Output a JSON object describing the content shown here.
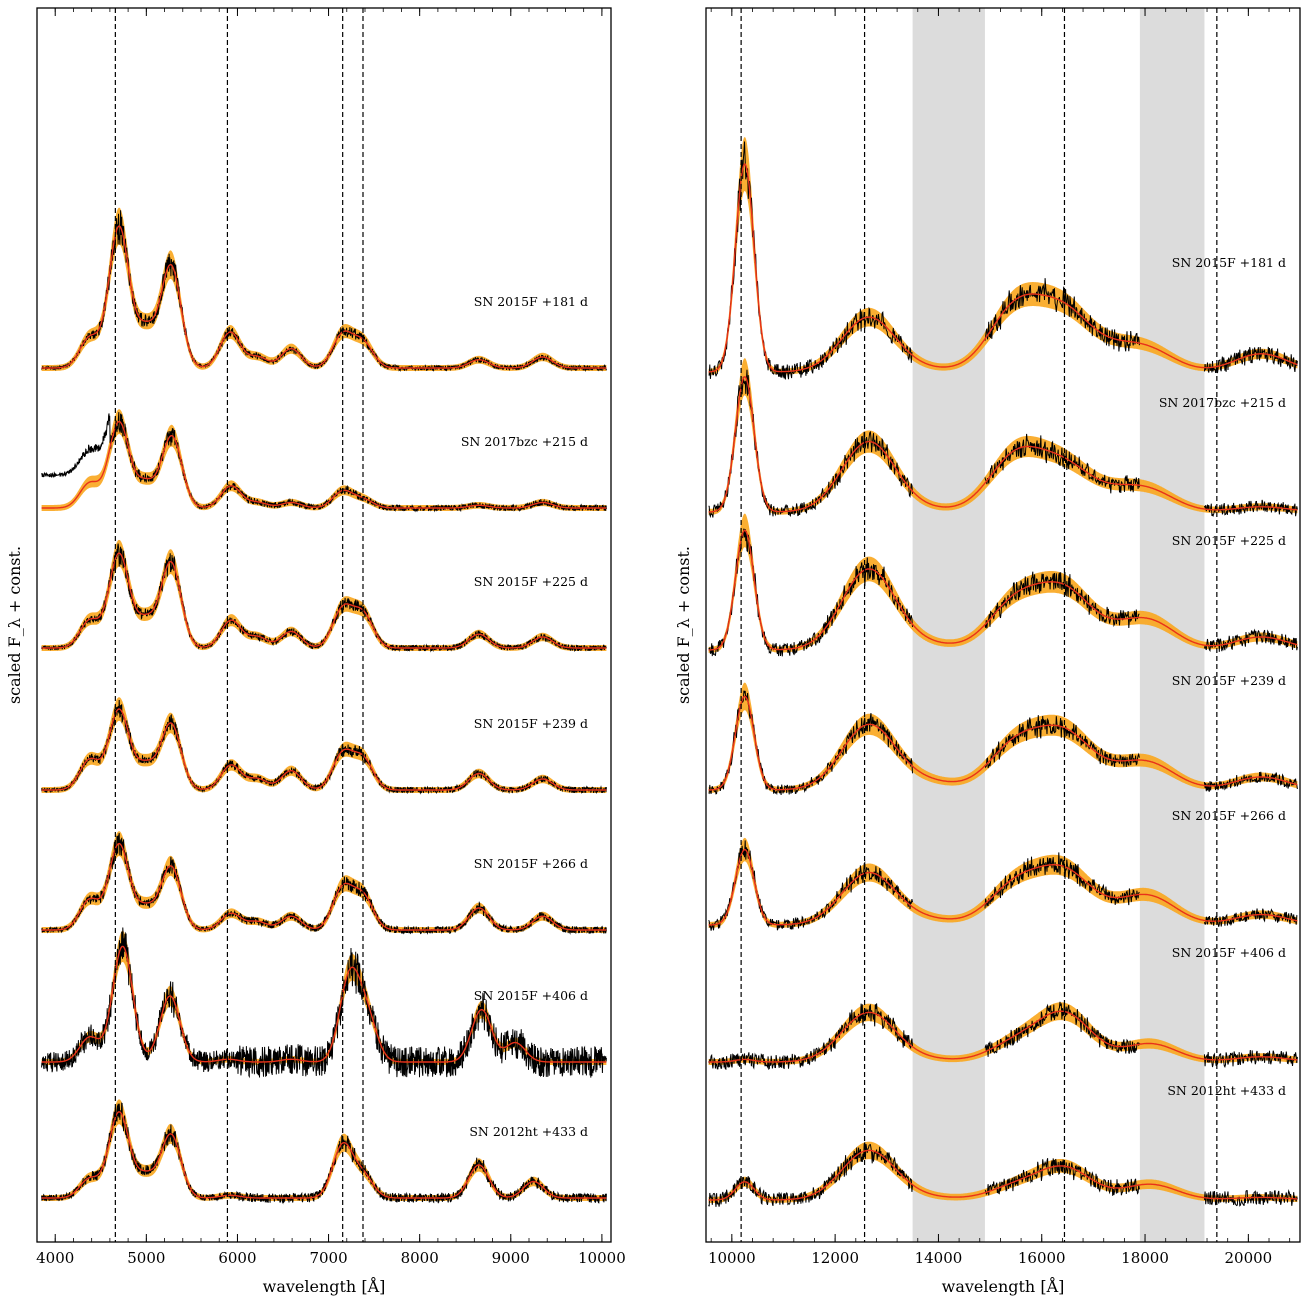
{
  "chart_data": [
    {
      "type": "line",
      "panel": "optical",
      "xlabel": "wavelength [Å]",
      "ylabel": "scaled F_λ + const.",
      "xlim": [
        3800,
        10100
      ],
      "xticks": [
        "4000",
        "5000",
        "6000",
        "7000",
        "8000",
        "9000",
        "10000"
      ],
      "reference_lines_x": [
        4660,
        5890,
        7155,
        7378
      ],
      "series_style": {
        "observed": "#000000",
        "model": "#e8311a",
        "model_band": "#f9a61d"
      },
      "series": [
        {
          "name": "SN 2015F +181 d",
          "peaks": [
            [
              4380,
              0.55,
              "model"
            ],
            [
              4700,
              2.55
            ],
            [
              4990,
              0.7
            ],
            [
              5270,
              1.85
            ],
            [
              5920,
              0.65
            ],
            [
              6220,
              0.2
            ],
            [
              6590,
              0.35
            ],
            [
              7155,
              0.6
            ],
            [
              7380,
              0.45
            ],
            [
              8650,
              0.15
            ],
            [
              9350,
              0.2
            ]
          ]
        },
        {
          "name": "SN 2017bzc +215 d",
          "peaks": [
            [
              4380,
              0.45,
              "model"
            ],
            [
              4700,
              1.55
            ],
            [
              4990,
              0.45
            ],
            [
              5280,
              1.3
            ],
            [
              5930,
              0.4
            ],
            [
              6220,
              0.1
            ],
            [
              6590,
              0.1
            ],
            [
              7155,
              0.3
            ],
            [
              7380,
              0.15
            ],
            [
              8650,
              0.05
            ],
            [
              9350,
              0.1
            ]
          ]
        },
        {
          "name": "SN 2015F +225 d",
          "peaks": [
            [
              4380,
              0.5,
              "model"
            ],
            [
              4700,
              1.7
            ],
            [
              4990,
              0.5
            ],
            [
              5270,
              1.55
            ],
            [
              5930,
              0.5
            ],
            [
              6220,
              0.2
            ],
            [
              6590,
              0.3
            ],
            [
              7155,
              0.7
            ],
            [
              7380,
              0.6
            ],
            [
              8650,
              0.25
            ],
            [
              9350,
              0.2
            ]
          ]
        },
        {
          "name": "SN 2015F +239 d",
          "peaks": [
            [
              4380,
              0.55,
              "model"
            ],
            [
              4700,
              1.45
            ],
            [
              4990,
              0.45
            ],
            [
              5270,
              1.2
            ],
            [
              5930,
              0.45
            ],
            [
              6220,
              0.2
            ],
            [
              6590,
              0.35
            ],
            [
              7155,
              0.65
            ],
            [
              7380,
              0.55
            ],
            [
              8650,
              0.3
            ],
            [
              9350,
              0.2
            ]
          ]
        },
        {
          "name": "SN 2015F +266 d",
          "peaks": [
            [
              4380,
              0.55,
              "model"
            ],
            [
              4700,
              1.55
            ],
            [
              4990,
              0.4
            ],
            [
              5270,
              1.15
            ],
            [
              5930,
              0.3
            ],
            [
              6220,
              0.15
            ],
            [
              6590,
              0.25
            ],
            [
              7155,
              0.75
            ],
            [
              7380,
              0.6
            ],
            [
              8650,
              0.4
            ],
            [
              9350,
              0.25
            ]
          ]
        },
        {
          "name": "SN 2015F +406 d",
          "peaks": [
            [
              4380,
              0.45,
              "model"
            ],
            [
              4740,
              2.1
            ],
            [
              5260,
              1.2
            ],
            [
              5900,
              0.05
            ],
            [
              6590,
              0.05
            ],
            [
              7230,
              1.5
            ],
            [
              7420,
              0.8
            ],
            [
              8680,
              0.95
            ],
            [
              9050,
              0.35
            ]
          ]
        },
        {
          "name": "SN 2012ht +433 d",
          "peaks": [
            [
              4380,
              0.35,
              "model"
            ],
            [
              4700,
              1.55
            ],
            [
              4990,
              0.4
            ],
            [
              5270,
              1.15
            ],
            [
              5920,
              0.05
            ],
            [
              7155,
              0.95
            ],
            [
              7380,
              0.4
            ],
            [
              8650,
              0.6
            ],
            [
              9250,
              0.3
            ]
          ]
        }
      ]
    },
    {
      "type": "line",
      "panel": "near-infrared",
      "xlabel": "wavelength [Å]",
      "ylabel": "scaled F_λ + const.",
      "xlim": [
        9500,
        21000
      ],
      "xticks": [
        "10000",
        "12000",
        "14000",
        "16000",
        "18000",
        "20000"
      ],
      "reference_lines_x": [
        10180,
        12570,
        16440,
        19390
      ],
      "telluric_bands": [
        [
          13500,
          14900
        ],
        [
          17900,
          19150
        ]
      ],
      "gaps": [
        [
          13500,
          14900
        ],
        [
          17900,
          19150
        ]
      ],
      "series_style": {
        "observed": "#000000",
        "model": "#e8311a",
        "model_band": "#f9a61d"
      },
      "series": [
        {
          "name": "SN 2015F +181 d",
          "peaks": [
            [
              10250,
              4.0
            ],
            [
              12650,
              1.05
            ],
            [
              13800,
              0.05
            ],
            [
              15500,
              1.2
            ],
            [
              16450,
              1.05
            ],
            [
              17450,
              0.3
            ],
            [
              18100,
              0.35
            ],
            [
              20250,
              0.35
            ]
          ]
        },
        {
          "name": "SN 2017bzc +215 d",
          "peaks": [
            [
              10250,
              2.6
            ],
            [
              12650,
              1.35
            ],
            [
              13800,
              0.05
            ],
            [
              15500,
              1.05
            ],
            [
              16450,
              0.8
            ],
            [
              17450,
              0.25
            ],
            [
              18100,
              0.35
            ],
            [
              20250,
              0.1
            ]
          ]
        },
        {
          "name": "SN 2015F +225 d",
          "peaks": [
            [
              10250,
              2.3
            ],
            [
              12650,
              1.55
            ],
            [
              13800,
              0.1
            ],
            [
              15500,
              0.9
            ],
            [
              16450,
              1.05
            ],
            [
              17450,
              0.2
            ],
            [
              18100,
              0.5
            ],
            [
              20250,
              0.25
            ]
          ]
        },
        {
          "name": "SN 2015F +239 d",
          "peaks": [
            [
              10250,
              1.8
            ],
            [
              12650,
              1.25
            ],
            [
              13800,
              0.15
            ],
            [
              15500,
              0.85
            ],
            [
              16450,
              1.0
            ],
            [
              17450,
              0.2
            ],
            [
              18100,
              0.45
            ],
            [
              20250,
              0.25
            ]
          ]
        },
        {
          "name": "SN 2015F +266 d",
          "peaks": [
            [
              10250,
              1.45
            ],
            [
              12650,
              1.0
            ],
            [
              13800,
              0.1
            ],
            [
              15500,
              0.75
            ],
            [
              16450,
              0.95
            ],
            [
              17450,
              0.15
            ],
            [
              18100,
              0.5
            ],
            [
              20250,
              0.2
            ]
          ]
        },
        {
          "name": "SN 2015F +406 d",
          "peaks": [
            [
              10250,
              0.05
            ],
            [
              12650,
              0.95
            ],
            [
              13800,
              0.05
            ],
            [
              15500,
              0.35
            ],
            [
              16450,
              0.9
            ],
            [
              18100,
              0.35
            ],
            [
              20250,
              0.1
            ]
          ]
        },
        {
          "name": "SN 2012ht +433 d",
          "peaks": [
            [
              10250,
              0.35
            ],
            [
              12650,
              0.95
            ],
            [
              13800,
              0.05
            ],
            [
              15500,
              0.25
            ],
            [
              16450,
              0.6
            ],
            [
              18100,
              0.3
            ],
            [
              20250,
              0.05
            ]
          ]
        }
      ]
    }
  ]
}
